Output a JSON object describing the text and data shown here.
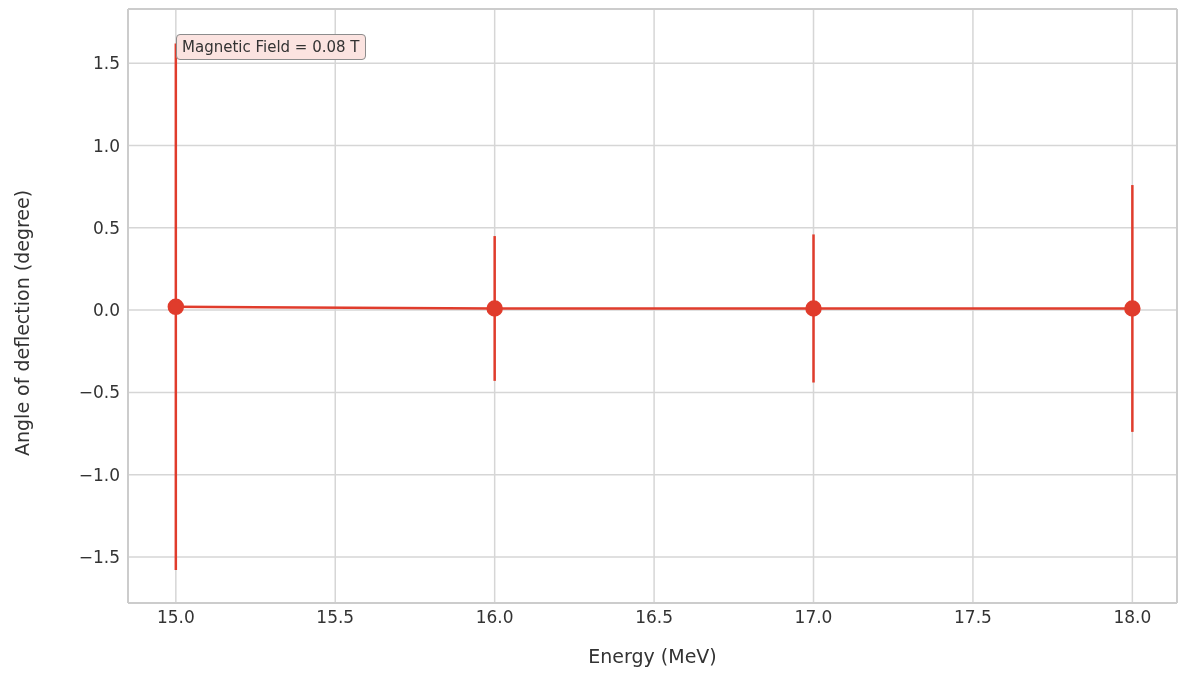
{
  "chart_data": {
    "type": "line",
    "xlabel": "Energy (MeV)",
    "ylabel": "Angle of deflection (degree)",
    "annotations": [
      "Magnetic Field = 0.08 T"
    ],
    "x": [
      15.0,
      16.0,
      17.0,
      18.0
    ],
    "series": [
      {
        "color": "#e03c2c",
        "values": [
          0.02,
          0.01,
          0.01,
          0.01
        ],
        "errors": [
          1.6,
          0.44,
          0.45,
          0.75
        ]
      }
    ],
    "xlim": [
      14.85,
      18.14
    ],
    "xticks": [
      {
        "value": 15,
        "label": "15.0"
      },
      15.5,
      {
        "value": 16,
        "label": "16.0"
      },
      16.5,
      {
        "value": 17,
        "label": "17.0"
      },
      17.5,
      {
        "value": 18,
        "label": "18.0"
      }
    ],
    "ylim": [
      -1.78,
      1.83
    ],
    "yticks": [
      -1.5,
      {
        "value": -1,
        "label": "−1.0"
      },
      -0.5,
      {
        "value": 0,
        "label": "0.0"
      },
      0.5,
      {
        "value": 1,
        "label": "1.0"
      },
      1.5
    ],
    "grid": true,
    "marker": "circle",
    "line_style": "solid"
  }
}
